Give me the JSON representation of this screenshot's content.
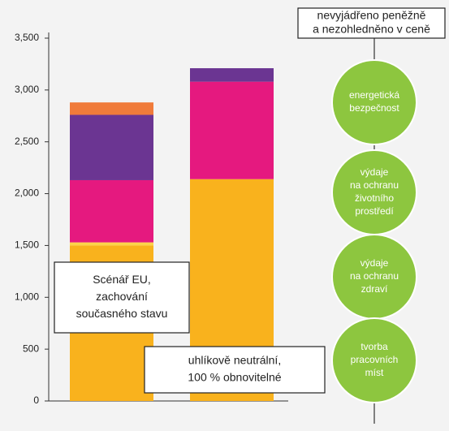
{
  "chart_data": {
    "type": "bar",
    "stacked": true,
    "categories": [
      null,
      null
    ],
    "series": [
      {
        "color": "#f9b21d",
        "values": [
          1500,
          2140
        ]
      },
      {
        "color": "#fcd34a",
        "values": [
          30,
          0
        ]
      },
      {
        "color": "#e5197f",
        "values": [
          600,
          940
        ]
      },
      {
        "color": "#6b3592",
        "values": [
          630,
          130
        ]
      },
      {
        "color": "#f07b3a",
        "values": [
          120,
          0
        ]
      }
    ],
    "ylim": [
      0,
      3500
    ],
    "yticks": [
      0,
      500,
      {
        "value": 1000,
        "label": "1,000"
      },
      {
        "value": 1500,
        "label": "1,500"
      },
      {
        "value": 2000,
        "label": "2,000"
      },
      {
        "value": 2500,
        "label": "2,500"
      },
      {
        "value": 3000,
        "label": "3,000"
      },
      {
        "value": 3500,
        "label": "3,500"
      }
    ],
    "annotations": [
      {
        "lines": [
          "Scénář EU,",
          "zachování",
          "současného stavu"
        ]
      },
      {
        "lines": [
          "uhlíkově neutrální,",
          "100 % obnovitelné"
        ]
      }
    ]
  },
  "diagram": {
    "header": [
      "nevyjádřeno peněžně",
      "a nezohledněno v ceně"
    ],
    "nodes": [
      {
        "lines": [
          "energetická",
          "bezpečnost"
        ]
      },
      {
        "lines": [
          "výdaje",
          "na ochranu",
          "životního",
          "prostředí"
        ]
      },
      {
        "lines": [
          "výdaje",
          "na ochranu",
          "zdraví"
        ]
      },
      {
        "lines": [
          "tvorba",
          "pracovních",
          "míst"
        ]
      }
    ]
  }
}
